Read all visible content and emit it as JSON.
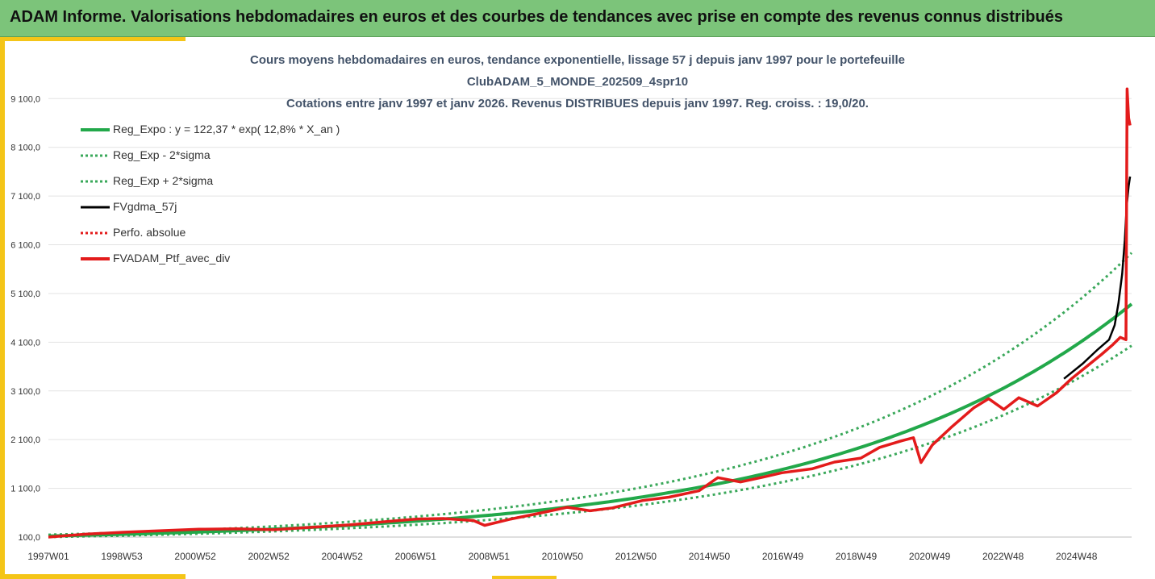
{
  "banner": {
    "title": "ADAM Informe. Valorisations hebdomadaires en euros et des courbes de tendances avec prise en compte des revenus connus distribués"
  },
  "colors": {
    "banner_bg": "#7cc47a",
    "accent": "#f4c518",
    "reg_expo": "#22a84a",
    "sigma": "#3aa85a",
    "mma": "#000000",
    "perfo": "#e31b1b",
    "fvadam": "#e31b1b",
    "grid": "#e3e3e3",
    "title_text": "#44546a"
  },
  "chart_data": {
    "type": "line",
    "title_lines": [
      "Cours moyens hebdomadaires  en euros, tendance exponentielle, lissage 57 j depuis janv 1997 pour le portefeuille",
      "ClubADAM_5_MONDE_202509_4spr10",
      "Cotations entre janv 1997 et janv 2026. Revenus DISTRIBUES depuis janv 1997. Reg. croiss. : 19,0/20."
    ],
    "y_ticks": [
      "100,0",
      "1 100,0",
      "2 100,0",
      "3 100,0",
      "4 100,0",
      "5 100,0",
      "6 100,0",
      "7 100,0",
      "8 100,0",
      "9 100,0"
    ],
    "y_min": 100,
    "y_max": 9800,
    "x_ticks": [
      "1997W01",
      "1998W53",
      "2000W52",
      "2002W52",
      "2004W52",
      "2006W51",
      "2008W51",
      "2010W50",
      "2012W50",
      "2014W50",
      "2016W49",
      "2018W49",
      "2020W49",
      "2022W48",
      "2024W48"
    ],
    "x_range_years": [
      1997.0,
      2025.8
    ],
    "grid": true,
    "legend_position": "top-left",
    "legend": [
      "Reg_Expo : y = 122,37 * exp( 12,8% *  X_an )",
      "Reg_Exp - 2*sigma",
      "Reg_Exp + 2*sigma",
      "FVgdma_57j",
      "Perfo. absolue",
      "FVADAM_Ptf_avec_div"
    ],
    "regression": {
      "a": 122.37,
      "rate": 0.128,
      "sigma_factor_low": 0.825,
      "sigma_factor_high": 1.215
    },
    "series": [
      {
        "name": "FVADAM_Ptf_avec_div",
        "points": [
          [
            1997.0,
            100
          ],
          [
            1998.0,
            160
          ],
          [
            1999.0,
            200
          ],
          [
            2000.0,
            230
          ],
          [
            2001.0,
            260
          ],
          [
            2002.0,
            270
          ],
          [
            2003.0,
            250
          ],
          [
            2004.0,
            300
          ],
          [
            2005.0,
            350
          ],
          [
            2006.0,
            420
          ],
          [
            2006.8,
            470
          ],
          [
            2007.5,
            480
          ],
          [
            2008.3,
            440
          ],
          [
            2008.6,
            340
          ],
          [
            2009.3,
            470
          ],
          [
            2010.0,
            580
          ],
          [
            2010.8,
            710
          ],
          [
            2011.4,
            640
          ],
          [
            2012.0,
            700
          ],
          [
            2012.8,
            850
          ],
          [
            2013.5,
            920
          ],
          [
            2014.3,
            1050
          ],
          [
            2014.8,
            1320
          ],
          [
            2015.4,
            1230
          ],
          [
            2016.0,
            1330
          ],
          [
            2016.5,
            1420
          ],
          [
            2017.3,
            1500
          ],
          [
            2017.9,
            1640
          ],
          [
            2018.6,
            1720
          ],
          [
            2019.1,
            1940
          ],
          [
            2019.7,
            2080
          ],
          [
            2020.0,
            2140
          ],
          [
            2020.2,
            1630
          ],
          [
            2020.5,
            1990
          ],
          [
            2021.0,
            2350
          ],
          [
            2021.6,
            2750
          ],
          [
            2022.0,
            2940
          ],
          [
            2022.4,
            2720
          ],
          [
            2022.8,
            2960
          ],
          [
            2023.3,
            2790
          ],
          [
            2023.8,
            3060
          ],
          [
            2024.2,
            3350
          ],
          [
            2024.7,
            3660
          ],
          [
            2025.0,
            3850
          ],
          [
            2025.3,
            4050
          ],
          [
            2025.5,
            4200
          ],
          [
            2025.65,
            4150
          ],
          [
            2025.68,
            9300
          ],
          [
            2025.72,
            8700
          ],
          [
            2025.76,
            8550
          ]
        ]
      },
      {
        "name": "FVgdma_57j",
        "points": [
          [
            2024.0,
            3350
          ],
          [
            2024.5,
            3660
          ],
          [
            2024.9,
            3950
          ],
          [
            2025.2,
            4150
          ],
          [
            2025.35,
            4450
          ],
          [
            2025.45,
            4900
          ],
          [
            2025.55,
            5500
          ],
          [
            2025.62,
            6200
          ],
          [
            2025.67,
            6900
          ],
          [
            2025.72,
            7300
          ],
          [
            2025.76,
            7500
          ]
        ]
      }
    ]
  }
}
